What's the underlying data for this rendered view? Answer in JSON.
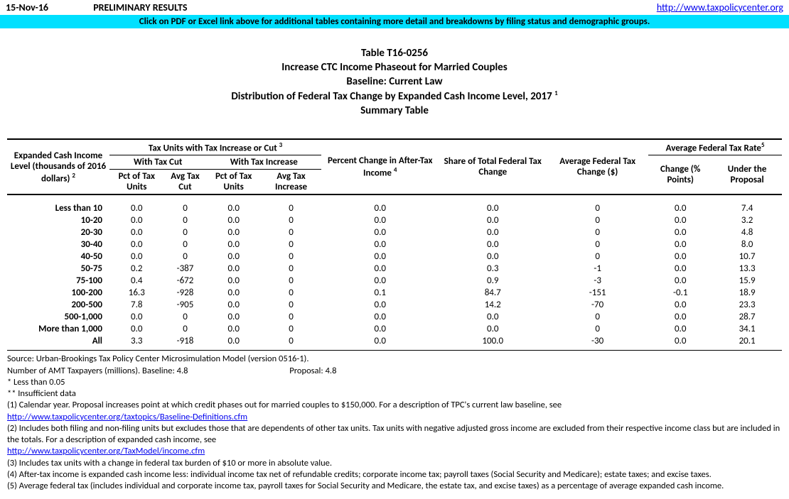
{
  "top": {
    "date": "15-Nov-16",
    "prelim": "PRELIMINARY RESULTS",
    "link_text": "http://www.taxpolicycenter.org",
    "link_href": "http://www.taxpolicycenter.org"
  },
  "banner": "Click on PDF or Excel link above for additional tables containing more detail and breakdowns by filing status and demographic groups.",
  "titles": {
    "l1": "Table T16-0256",
    "l2": "Increase CTC Income Phaseout for Married Couples",
    "l3": "Baseline: Current Law",
    "l4": "Distribution of Federal Tax Change by Expanded Cash Income Level, 2017 ",
    "l4sup": "1",
    "l5": "Summary Table"
  },
  "headers": {
    "col1": "Expanded Cash Income Level (thousands of 2016 dollars) ",
    "col1sup": "2",
    "group1": "Tax Units with Tax Increase or Cut ",
    "group1sup": "3",
    "group1a": "With Tax Cut",
    "group1b": "With Tax Increase",
    "pct_units": "Pct of Tax Units",
    "avg_cut": "Avg Tax Cut",
    "avg_inc": "Avg Tax Increase",
    "pct_change": "Percent Change in After-Tax Income ",
    "pct_change_sup": "4",
    "share": "Share of Total Federal Tax Change",
    "avg_change": "Average Federal Tax Change ($)",
    "group2": "Average Federal Tax Rate",
    "group2sup": "5",
    "change_pts": "Change (% Points)",
    "under_prop": "Under the Proposal"
  },
  "rows": [
    {
      "label": "Less than 10",
      "c1": "0.0",
      "c2": "0",
      "c3": "0.0",
      "c4": "0",
      "c5": "0.0",
      "c6": "0.0",
      "c7": "0",
      "c8": "0.0",
      "c9": "7.4"
    },
    {
      "label": "10-20",
      "c1": "0.0",
      "c2": "0",
      "c3": "0.0",
      "c4": "0",
      "c5": "0.0",
      "c6": "0.0",
      "c7": "0",
      "c8": "0.0",
      "c9": "3.2"
    },
    {
      "label": "20-30",
      "c1": "0.0",
      "c2": "0",
      "c3": "0.0",
      "c4": "0",
      "c5": "0.0",
      "c6": "0.0",
      "c7": "0",
      "c8": "0.0",
      "c9": "4.8"
    },
    {
      "label": "30-40",
      "c1": "0.0",
      "c2": "0",
      "c3": "0.0",
      "c4": "0",
      "c5": "0.0",
      "c6": "0.0",
      "c7": "0",
      "c8": "0.0",
      "c9": "8.0"
    },
    {
      "label": "40-50",
      "c1": "0.0",
      "c2": "0",
      "c3": "0.0",
      "c4": "0",
      "c5": "0.0",
      "c6": "0.0",
      "c7": "0",
      "c8": "0.0",
      "c9": "10.7"
    },
    {
      "label": "50-75",
      "c1": "0.2",
      "c2": "-387",
      "c3": "0.0",
      "c4": "0",
      "c5": "0.0",
      "c6": "0.3",
      "c7": "-1",
      "c8": "0.0",
      "c9": "13.3"
    },
    {
      "label": "75-100",
      "c1": "0.4",
      "c2": "-672",
      "c3": "0.0",
      "c4": "0",
      "c5": "0.0",
      "c6": "0.9",
      "c7": "-3",
      "c8": "0.0",
      "c9": "15.9"
    },
    {
      "label": "100-200",
      "c1": "16.3",
      "c2": "-928",
      "c3": "0.0",
      "c4": "0",
      "c5": "0.1",
      "c6": "84.7",
      "c7": "-151",
      "c8": "-0.1",
      "c9": "18.9"
    },
    {
      "label": "200-500",
      "c1": "7.8",
      "c2": "-905",
      "c3": "0.0",
      "c4": "0",
      "c5": "0.0",
      "c6": "14.2",
      "c7": "-70",
      "c8": "0.0",
      "c9": "23.3"
    },
    {
      "label": "500-1,000",
      "c1": "0.0",
      "c2": "0",
      "c3": "0.0",
      "c4": "0",
      "c5": "0.0",
      "c6": "0.0",
      "c7": "0",
      "c8": "0.0",
      "c9": "28.7"
    },
    {
      "label": "More than 1,000",
      "c1": "0.0",
      "c2": "0",
      "c3": "0.0",
      "c4": "0",
      "c5": "0.0",
      "c6": "0.0",
      "c7": "0",
      "c8": "0.0",
      "c9": "34.1"
    },
    {
      "label": "All",
      "c1": "3.3",
      "c2": "-918",
      "c3": "0.0",
      "c4": "0",
      "c5": "0.0",
      "c6": "100.0",
      "c7": "-30",
      "c8": "0.0",
      "c9": "20.1"
    }
  ],
  "footnotes": {
    "source": "Source: Urban-Brookings Tax Policy Center Microsimulation Model (version 0516-1).",
    "amt_label": "Number of AMT Taxpayers (millions).  Baseline: 4.8",
    "amt_prop": "Proposal: 4.8",
    "star1": "* Less than 0.05",
    "star2": "** Insufficient data",
    "n1": "(1) Calendar year. Proposal increases point at which credit phases out for married couples to $150,000. For a description of TPC's current law baseline, see",
    "link1": "http://www.taxpolicycenter.org/taxtopics/Baseline-Definitions.cfm",
    "n2": "(2) Includes both filing and non-filing units but excludes those that are dependents of other tax units. Tax units with negative adjusted gross income are excluded from their respective income class but are included in the totals. For a description of expanded cash income, see",
    "link2": "http://www.taxpolicycenter.org/TaxModel/income.cfm",
    "n3": "(3) Includes tax units with a change in federal tax burden of $10 or more in absolute value.",
    "n4": "(4) After-tax income is expanded cash income less: individual income tax net of refundable credits; corporate income tax; payroll taxes (Social Security and Medicare); estate taxes; and excise taxes.",
    "n5": "(5) Average federal tax (includes individual and corporate income tax, payroll taxes for Social Security and Medicare, the estate tax, and excise taxes) as a percentage of average expanded cash income."
  }
}
